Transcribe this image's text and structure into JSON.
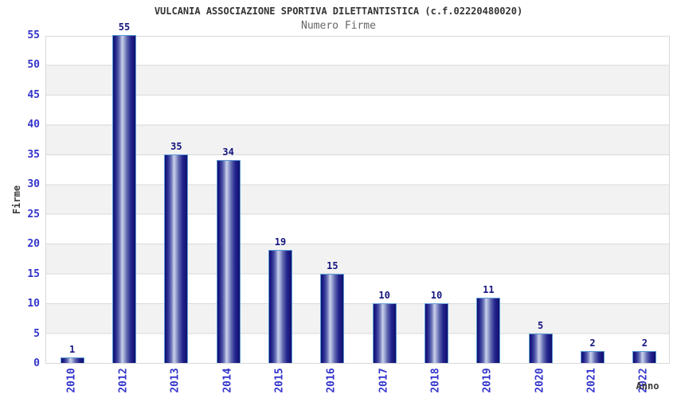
{
  "chart_data": {
    "type": "bar",
    "title": "VULCANIA ASSOCIAZIONE SPORTIVA DILETTANTISTICA (c.f.02220480020)",
    "subtitle": "Numero Firme",
    "xlabel": "Anno",
    "ylabel": "Firme",
    "categories": [
      "2010",
      "2012",
      "2013",
      "2014",
      "2015",
      "2016",
      "2017",
      "2018",
      "2019",
      "2020",
      "2021",
      "2022"
    ],
    "values": [
      1,
      55,
      35,
      34,
      19,
      15,
      10,
      10,
      11,
      5,
      2,
      2
    ],
    "ylim": [
      0,
      55
    ],
    "yticks": [
      0,
      5,
      10,
      15,
      20,
      25,
      30,
      35,
      40,
      45,
      50,
      55
    ],
    "grid": "horizontal gridlines every 5 units with alternating white/gray bands",
    "legend": "none"
  },
  "colors": {
    "title_text": "#333333",
    "subtitle_text": "#666666",
    "tick_label": "#3333cc",
    "value_label": "#15157d",
    "axis_title": "#3a3a3a",
    "bar_dark": "#10106e",
    "bar_highlight": "#c9cfe9",
    "bar_border": "#5b9bd5",
    "band_gray": "#f2f2f2",
    "gridline": "#d9d9d9",
    "background": "#ffffff"
  }
}
